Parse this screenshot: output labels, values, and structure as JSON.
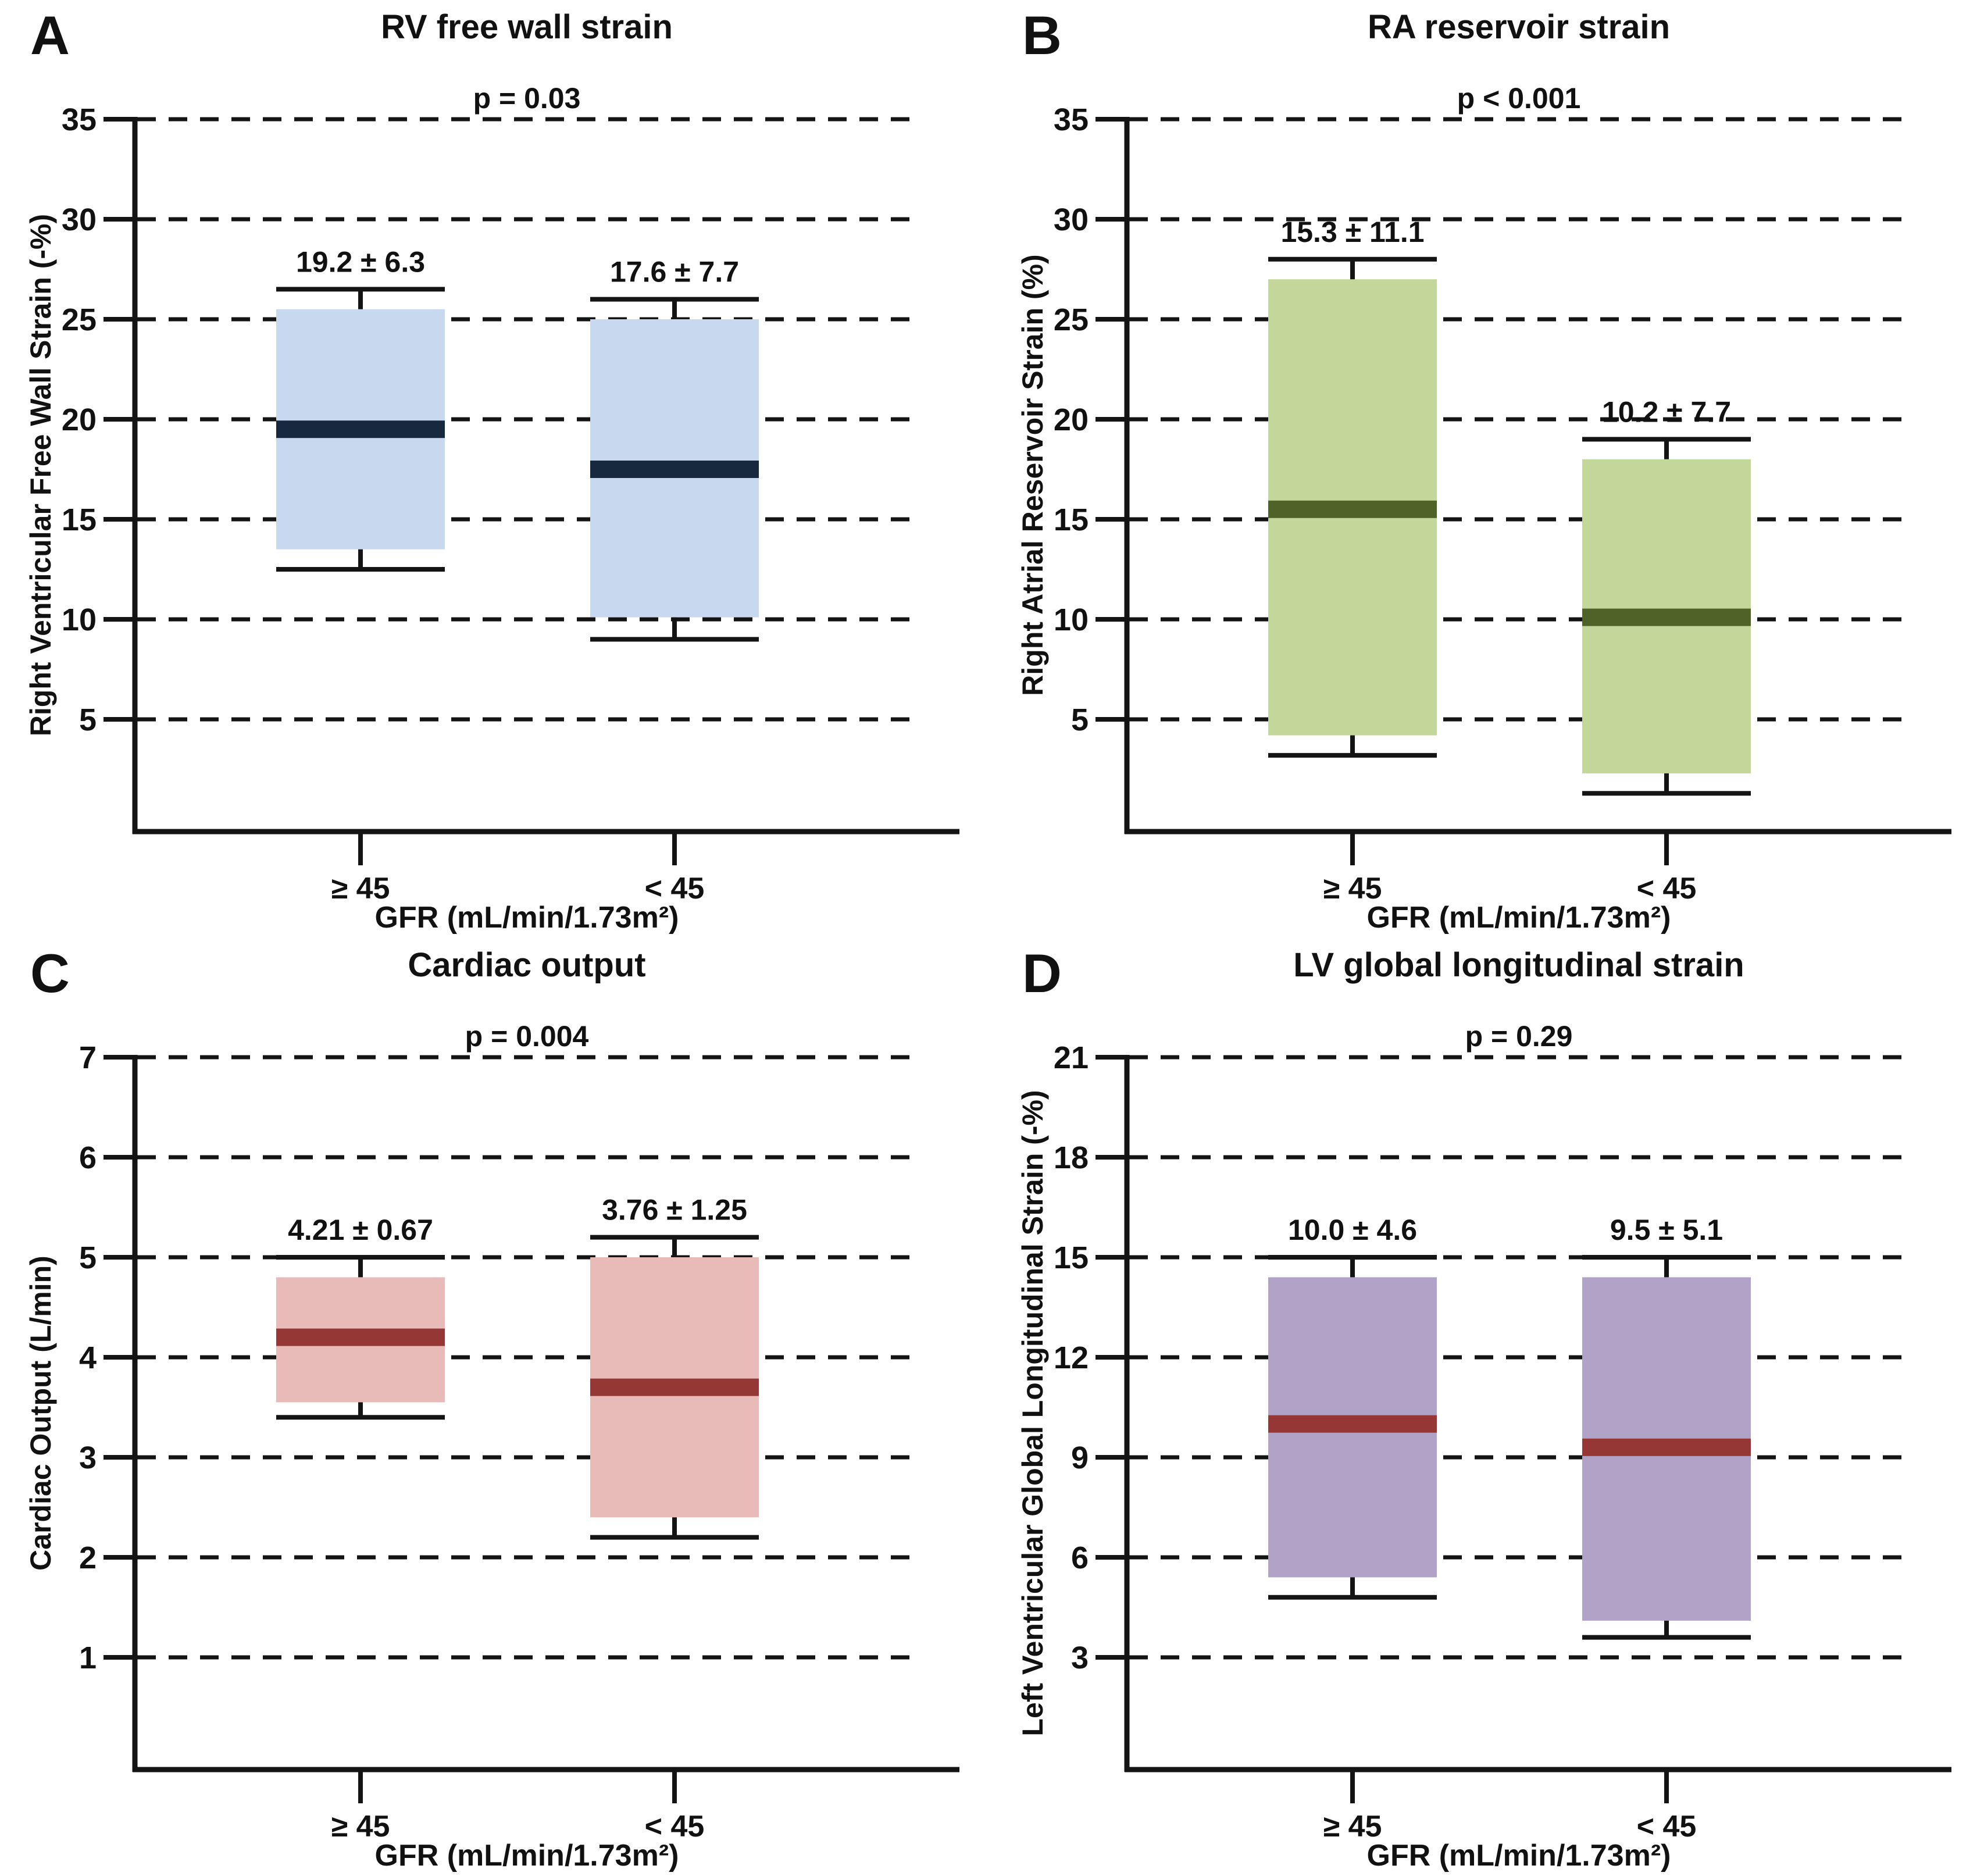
{
  "figure": {
    "background": "#ffffff",
    "line_color": "#141414"
  },
  "chart_data": [
    {
      "type": "box",
      "panel_letter": "A",
      "title": "RV free wall strain",
      "p_label": "p = 0.03",
      "ylabel": "Right Ventricular Free Wall Strain (-%)",
      "xlabel": "GFR (mL/min/1.73m²)",
      "categories": [
        "≥ 45",
        "< 45"
      ],
      "yticks": [
        5,
        10,
        15,
        20,
        25,
        30,
        35
      ],
      "ymax": 35,
      "ytick_step": 5,
      "ylim": [
        0,
        35
      ],
      "grid": "dashed-horizontal",
      "legend": "none",
      "box_fill": "#c7d8ef",
      "median_color": "#17293f",
      "boxes": [
        {
          "category": "≥ 45",
          "mean_sd": "19.2 ± 6.3",
          "whisker_low": 12.5,
          "q1": 13.5,
          "median": 19.5,
          "q3": 25.5,
          "whisker_high": 26.5
        },
        {
          "category": "< 45",
          "mean_sd": "17.6 ± 7.7",
          "whisker_low": 9.0,
          "q1": 10.1,
          "median": 17.5,
          "q3": 25.0,
          "whisker_high": 26.0
        }
      ]
    },
    {
      "type": "box",
      "panel_letter": "B",
      "title": "RA reservoir strain",
      "p_label": "p < 0.001",
      "ylabel": "Right Atrial Reservoir Strain (%)",
      "xlabel": "GFR (mL/min/1.73m²)",
      "categories": [
        "≥ 45",
        "< 45"
      ],
      "yticks": [
        5,
        10,
        15,
        20,
        25,
        30,
        35
      ],
      "ymax": 35,
      "ytick_step": 5,
      "ylim": [
        0,
        35
      ],
      "grid": "dashed-horizontal",
      "legend": "none",
      "box_fill": "#c4d79b",
      "median_color": "#4f6228",
      "boxes": [
        {
          "category": "≥ 45",
          "mean_sd": "15.3 ± 11.1",
          "whisker_low": 3.2,
          "q1": 4.2,
          "median": 15.5,
          "q3": 27.0,
          "whisker_high": 28.0
        },
        {
          "category": "< 45",
          "mean_sd": "10.2 ± 7.7",
          "whisker_low": 1.3,
          "q1": 2.3,
          "median": 10.1,
          "q3": 18.0,
          "whisker_high": 19.0
        }
      ]
    },
    {
      "type": "box",
      "panel_letter": "C",
      "title": "Cardiac output",
      "p_label": "p = 0.004",
      "ylabel": "Cardiac Output (L/min)",
      "xlabel": "GFR (mL/min/1.73m²)",
      "categories": [
        "≥ 45",
        "< 45"
      ],
      "yticks": [
        1,
        2,
        3,
        4,
        5,
        6,
        7
      ],
      "ymax": 7,
      "ytick_step": 1,
      "ylim": [
        0,
        7
      ],
      "grid": "dashed-horizontal",
      "legend": "none",
      "box_fill": "#e8bbb9",
      "median_color": "#953735",
      "boxes": [
        {
          "category": "≥ 45",
          "mean_sd": "4.21 ± 0.67",
          "whisker_low": 3.4,
          "q1": 3.55,
          "median": 4.2,
          "q3": 4.8,
          "whisker_high": 5.0
        },
        {
          "category": "< 45",
          "mean_sd": "3.76 ± 1.25",
          "whisker_low": 2.2,
          "q1": 2.4,
          "median": 3.7,
          "q3": 5.0,
          "whisker_high": 5.2
        }
      ]
    },
    {
      "type": "box",
      "panel_letter": "D",
      "title": "LV global longitudinal strain",
      "p_label": "p = 0.29",
      "ylabel": "Left Ventricular Global Longitudinal Strain (-%)",
      "xlabel": "GFR (mL/min/1.73m²)",
      "categories": [
        "≥ 45",
        "< 45"
      ],
      "yticks": [
        3,
        6,
        9,
        12,
        15,
        18,
        21
      ],
      "ymax": 21,
      "ytick_step": 3,
      "ylim": [
        0,
        21
      ],
      "grid": "dashed-horizontal",
      "legend": "none",
      "box_fill": "#b1a2c8",
      "median_color": "#953735",
      "boxes": [
        {
          "category": "≥ 45",
          "mean_sd": "10.0 ± 4.6",
          "whisker_low": 4.8,
          "q1": 5.4,
          "median": 10.0,
          "q3": 14.4,
          "whisker_high": 15.0
        },
        {
          "category": "< 45",
          "mean_sd": "9.5 ± 5.1",
          "whisker_low": 3.6,
          "q1": 4.1,
          "median": 9.3,
          "q3": 14.4,
          "whisker_high": 15.0
        }
      ]
    }
  ]
}
